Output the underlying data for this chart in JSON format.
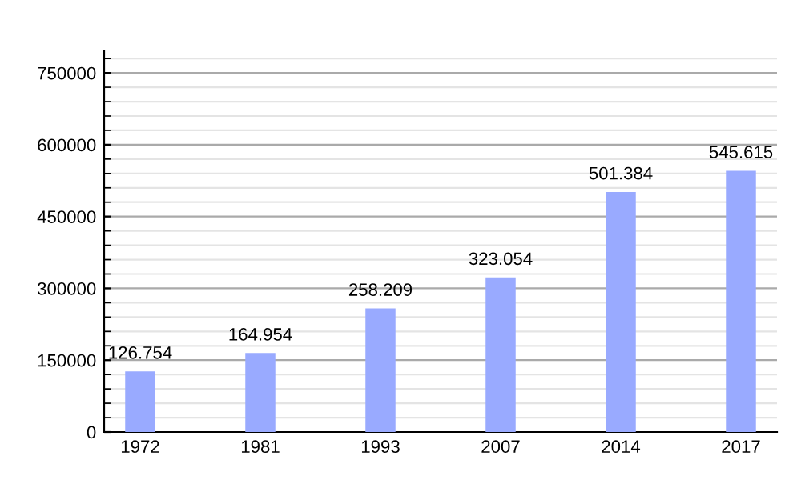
{
  "chart_data": {
    "type": "bar",
    "categories": [
      "1972",
      "1981",
      "1993",
      "2007",
      "2014",
      "2017"
    ],
    "values": [
      126754,
      164954,
      258209,
      323054,
      501384,
      545615
    ],
    "value_labels": [
      "126.754",
      "164.954",
      "258.209",
      "323.054",
      "501.384",
      "545.615"
    ],
    "color": "#99aaff",
    "ylim": [
      0,
      795000
    ],
    "yticks": [
      0,
      150000,
      300000,
      450000,
      600000,
      750000
    ],
    "grid": "y",
    "legend": false
  }
}
